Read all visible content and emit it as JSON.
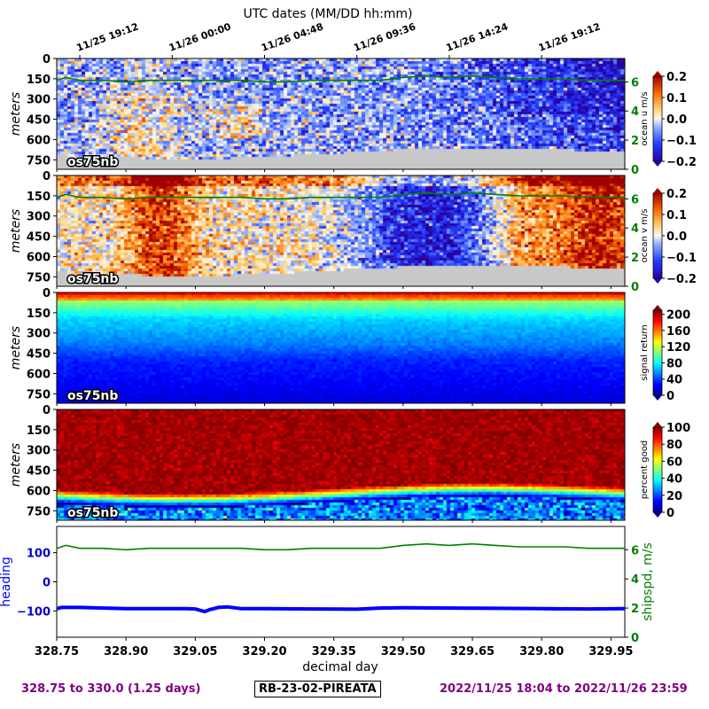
{
  "top_axis": {
    "label": "UTC dates (MM/DD hh:mm)",
    "ticks": [
      {
        "day": 328.8,
        "label": "11/25 19:12"
      },
      {
        "day": 329.0,
        "label": "11/26 00:00"
      },
      {
        "day": 329.2,
        "label": "11/26 04:48"
      },
      {
        "day": 329.4,
        "label": "11/26 09:36"
      },
      {
        "day": 329.6,
        "label": "11/26 14:24"
      },
      {
        "day": 329.8,
        "label": "11/26 19:12"
      }
    ]
  },
  "x_axis": {
    "label": "decimal day",
    "range": [
      328.75,
      329.98
    ],
    "ticks": [
      328.75,
      328.9,
      329.05,
      329.2,
      329.35,
      329.5,
      329.65,
      329.8,
      329.95
    ],
    "tick_labels": [
      "328.75",
      "328.90",
      "329.05",
      "329.20",
      "329.35",
      "329.50",
      "329.65",
      "329.80",
      "329.95"
    ]
  },
  "depth_axis": {
    "label": "meters",
    "range": [
      0,
      820
    ],
    "ticks": [
      0,
      150,
      300,
      450,
      600,
      750
    ],
    "tick_labels": [
      "0",
      "150",
      "300",
      "450",
      "600",
      "750"
    ]
  },
  "instrument_label": "os75nb",
  "chart_data": [
    {
      "type": "heatmap",
      "name": "ocean u",
      "colorbar_label": "ocean u m/s",
      "colormap": "bwr",
      "clim": [
        -0.2,
        0.2
      ],
      "colorbar_ticks": [
        0.2,
        0.1,
        0.0,
        -0.1,
        -0.2
      ],
      "colorbar_tick_labels": [
        "0.2",
        "0.1",
        "0.0",
        "−0.1",
        "−0.2"
      ],
      "right_axis_ticks": [
        0,
        2,
        4,
        6
      ],
      "right_axis_color": "#008000",
      "overlay_line": "ship speed (m/s)",
      "missing_color": "#c8c8c8"
    },
    {
      "type": "heatmap",
      "name": "ocean v",
      "colorbar_label": "ocean v m/s",
      "colormap": "bwr",
      "clim": [
        -0.2,
        0.2
      ],
      "colorbar_ticks": [
        0.2,
        0.1,
        0.0,
        -0.1,
        -0.2
      ],
      "colorbar_tick_labels": [
        "0.2",
        "0.1",
        "0.0",
        "−0.1",
        "−0.2"
      ],
      "right_axis_ticks": [
        0,
        2,
        4,
        6
      ],
      "right_axis_color": "#008000",
      "overlay_line": "ship speed (m/s)",
      "missing_color": "#c8c8c8"
    },
    {
      "type": "heatmap",
      "name": "signal return",
      "colorbar_label": "signal return",
      "colormap": "jet",
      "clim": [
        0,
        210
      ],
      "colorbar_ticks": [
        200,
        160,
        120,
        80,
        40,
        0
      ],
      "colorbar_tick_labels": [
        "200",
        "160",
        "120",
        "80",
        "40",
        "0"
      ]
    },
    {
      "type": "heatmap",
      "name": "percent good",
      "colorbar_label": "percent good",
      "colormap": "jet",
      "clim": [
        0,
        100
      ],
      "colorbar_ticks": [
        100,
        80,
        60,
        40,
        20,
        0
      ],
      "colorbar_tick_labels": [
        "100",
        "80",
        "60",
        "40",
        "20",
        "0"
      ]
    },
    {
      "type": "line",
      "name": "heading and ship speed",
      "left_axis": {
        "label": "heading",
        "color": "#0000ff",
        "ticks": [
          100,
          0,
          -100
        ],
        "tick_labels": [
          "100",
          "0",
          "−100"
        ],
        "ylim": [
          -190,
          190
        ]
      },
      "right_axis": {
        "label": "shipspd, m/s",
        "color": "#008000",
        "ticks": [
          6,
          4,
          2,
          0
        ],
        "tick_labels": [
          "6",
          "4",
          "2",
          "0"
        ],
        "ylim": [
          0,
          7.6
        ]
      },
      "series": [
        {
          "axis": "left",
          "color": "#0000ff",
          "x": [
            328.75,
            328.76,
            328.8,
            328.85,
            328.9,
            328.95,
            329.0,
            329.03,
            329.05,
            329.07,
            329.08,
            329.1,
            329.12,
            329.15,
            329.2,
            329.3,
            329.4,
            329.45,
            329.5,
            329.6,
            329.7,
            329.8,
            329.9,
            329.98
          ],
          "y": [
            -92,
            -88,
            -88,
            -90,
            -92,
            -92,
            -92,
            -92,
            -93,
            -102,
            -96,
            -88,
            -86,
            -92,
            -92,
            -93,
            -94,
            -90,
            -89,
            -90,
            -91,
            -92,
            -93,
            -92
          ]
        },
        {
          "axis": "right",
          "color": "#008000",
          "x": [
            328.75,
            328.77,
            328.8,
            328.85,
            328.9,
            328.95,
            329.0,
            329.05,
            329.1,
            329.15,
            329.2,
            329.25,
            329.3,
            329.35,
            329.4,
            329.45,
            329.5,
            329.55,
            329.6,
            329.65,
            329.7,
            329.75,
            329.8,
            329.85,
            329.9,
            329.95,
            329.98
          ],
          "y": [
            6.1,
            6.3,
            6.1,
            6.1,
            6.0,
            6.1,
            6.1,
            6.1,
            6.1,
            6.1,
            6.0,
            6.0,
            6.1,
            6.1,
            6.1,
            6.1,
            6.3,
            6.4,
            6.3,
            6.4,
            6.3,
            6.2,
            6.2,
            6.2,
            6.1,
            6.1,
            6.1
          ]
        }
      ]
    }
  ],
  "footer": {
    "left": "328.75 to 330.0 (1.25 days)",
    "center": "RB-23-02-PIREATA",
    "right": "2022/11/25 18:04 to 2022/11/26 23:59"
  }
}
